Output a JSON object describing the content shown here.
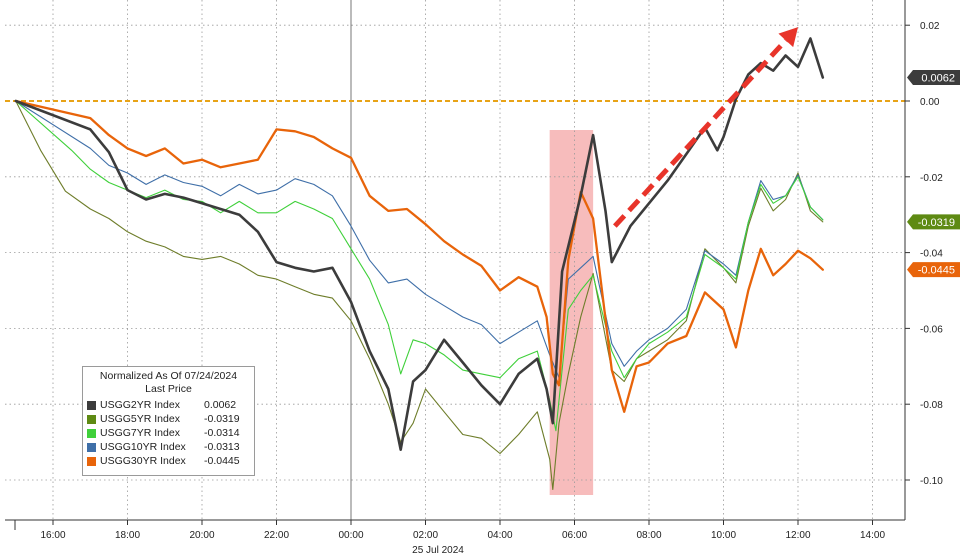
{
  "chart_data": {
    "type": "line",
    "x_ticks": [
      "16:00",
      "18:00",
      "20:00",
      "22:00",
      "00:00",
      "02:00",
      "04:00",
      "06:00",
      "08:00",
      "10:00",
      "12:00",
      "14:00"
    ],
    "x_sublabel": "25 Jul 2024",
    "y_ticks": [
      "0.02",
      "0.00",
      "-0.02",
      "-0.04",
      "-0.06",
      "-0.08",
      "-0.10"
    ],
    "ylim": [
      -0.11,
      0.021
    ],
    "xlim": [
      "15:00",
      "15:00 (+1d)"
    ],
    "zero_line_color": "#e8a317",
    "highlight_region": {
      "from": "05:20",
      "to": "06:30",
      "color": "#f4a6a6"
    },
    "trend_arrow": {
      "color": "#e8342a",
      "from": [
        "07:05",
        -0.033
      ],
      "to": [
        "12:00",
        0.0195
      ]
    },
    "legend": {
      "title": "Normalized As Of 07/24/2024",
      "subtitle": "Last Price",
      "items": [
        {
          "name": "USGG2YR Index",
          "value": "0.0062",
          "color": "#3c3c3c"
        },
        {
          "name": "USGG5YR Index",
          "value": "-0.0319",
          "color": "#5e8a13"
        },
        {
          "name": "USGG7YR Index",
          "value": "-0.0314",
          "color": "#3fd03a"
        },
        {
          "name": "USGG10YR Index",
          "value": "-0.0313",
          "color": "#3f6fa8"
        },
        {
          "name": "USGG30YR Index",
          "value": "-0.0445",
          "color": "#e8640a"
        }
      ]
    },
    "value_flags": [
      {
        "label": "0.0062",
        "value": 0.0062,
        "color": "#3c3c3c"
      },
      {
        "label": "-0.0319",
        "value": -0.0319,
        "color": "#5e8a13"
      },
      {
        "label": "-0.0445",
        "value": -0.0445,
        "color": "#e8640a"
      }
    ],
    "series": [
      {
        "color": "#6e7d2a",
        "width": 1.1,
        "points": [
          [
            "15:00",
            0
          ],
          [
            "15:40",
            -0.013
          ],
          [
            "16:20",
            -0.0238
          ],
          [
            "17:00",
            -0.0285
          ],
          [
            "17:30",
            -0.031
          ],
          [
            "18:00",
            -0.0345
          ],
          [
            "18:30",
            -0.037
          ],
          [
            "19:00",
            -0.0385
          ],
          [
            "19:30",
            -0.041
          ],
          [
            "20:00",
            -0.0418
          ],
          [
            "20:30",
            -0.041
          ],
          [
            "21:00",
            -0.043
          ],
          [
            "21:30",
            -0.046
          ],
          [
            "22:00",
            -0.047
          ],
          [
            "22:30",
            -0.049
          ],
          [
            "23:00",
            -0.051
          ],
          [
            "23:30",
            -0.052
          ],
          [
            "00:00",
            -0.058
          ],
          [
            "00:30",
            -0.068
          ],
          [
            "01:00",
            -0.08
          ],
          [
            "01:20",
            -0.09
          ],
          [
            "01:40",
            -0.085
          ],
          [
            "02:00",
            -0.076
          ],
          [
            "02:30",
            -0.082
          ],
          [
            "03:00",
            -0.088
          ],
          [
            "03:30",
            -0.089
          ],
          [
            "04:00",
            -0.093
          ],
          [
            "04:30",
            -0.088
          ],
          [
            "05:00",
            -0.082
          ],
          [
            "05:20",
            -0.0945
          ],
          [
            "05:25",
            -0.1025
          ],
          [
            "05:35",
            -0.085
          ],
          [
            "05:50",
            -0.072
          ],
          [
            "06:10",
            -0.057
          ],
          [
            "06:30",
            -0.0455
          ],
          [
            "07:00",
            -0.071
          ],
          [
            "07:20",
            -0.074
          ],
          [
            "07:40",
            -0.068
          ],
          [
            "08:00",
            -0.066
          ],
          [
            "08:30",
            -0.063
          ],
          [
            "09:00",
            -0.058
          ],
          [
            "09:30",
            -0.039
          ],
          [
            "10:00",
            -0.044
          ],
          [
            "10:20",
            -0.048
          ],
          [
            "10:40",
            -0.033
          ],
          [
            "11:00",
            -0.023
          ],
          [
            "11:20",
            -0.029
          ],
          [
            "11:40",
            -0.026
          ],
          [
            "12:00",
            -0.019
          ],
          [
            "12:20",
            -0.029
          ],
          [
            "12:40",
            -0.0319
          ]
        ]
      },
      {
        "color": "#3f6fa8",
        "width": 1.1,
        "points": [
          [
            "15:00",
            0
          ],
          [
            "17:00",
            -0.0125
          ],
          [
            "17:30",
            -0.017
          ],
          [
            "18:00",
            -0.019
          ],
          [
            "18:30",
            -0.022
          ],
          [
            "19:00",
            -0.0195
          ],
          [
            "19:30",
            -0.0215
          ],
          [
            "20:00",
            -0.0225
          ],
          [
            "20:30",
            -0.025
          ],
          [
            "21:00",
            -0.022
          ],
          [
            "21:30",
            -0.0245
          ],
          [
            "22:00",
            -0.0235
          ],
          [
            "22:30",
            -0.0205
          ],
          [
            "23:00",
            -0.022
          ],
          [
            "23:30",
            -0.025
          ],
          [
            "00:00",
            -0.033
          ],
          [
            "00:30",
            -0.042
          ],
          [
            "01:00",
            -0.048
          ],
          [
            "01:30",
            -0.047
          ],
          [
            "02:00",
            -0.051
          ],
          [
            "02:30",
            -0.054
          ],
          [
            "03:00",
            -0.057
          ],
          [
            "03:30",
            -0.059
          ],
          [
            "04:00",
            -0.064
          ],
          [
            "04:30",
            -0.061
          ],
          [
            "05:00",
            -0.058
          ],
          [
            "05:20",
            -0.067
          ],
          [
            "05:35",
            -0.073
          ],
          [
            "05:50",
            -0.047
          ],
          [
            "06:10",
            -0.044
          ],
          [
            "06:30",
            -0.041
          ],
          [
            "07:00",
            -0.064
          ],
          [
            "07:20",
            -0.07
          ],
          [
            "07:40",
            -0.066
          ],
          [
            "08:00",
            -0.063
          ],
          [
            "08:30",
            -0.06
          ],
          [
            "09:00",
            -0.055
          ],
          [
            "09:30",
            -0.0395
          ],
          [
            "10:00",
            -0.043
          ],
          [
            "10:20",
            -0.046
          ],
          [
            "10:40",
            -0.032
          ],
          [
            "11:00",
            -0.021
          ],
          [
            "11:20",
            -0.026
          ],
          [
            "11:40",
            -0.025
          ],
          [
            "12:00",
            -0.0195
          ],
          [
            "12:20",
            -0.028
          ],
          [
            "12:40",
            -0.0313
          ]
        ]
      },
      {
        "color": "#3fd03a",
        "width": 1.1,
        "points": [
          [
            "15:00",
            0
          ],
          [
            "16:30",
            -0.013
          ],
          [
            "17:00",
            -0.018
          ],
          [
            "17:30",
            -0.0215
          ],
          [
            "18:00",
            -0.0235
          ],
          [
            "18:30",
            -0.0255
          ],
          [
            "19:00",
            -0.0235
          ],
          [
            "19:30",
            -0.026
          ],
          [
            "20:00",
            -0.0265
          ],
          [
            "20:30",
            -0.0295
          ],
          [
            "21:00",
            -0.0265
          ],
          [
            "21:30",
            -0.0295
          ],
          [
            "22:00",
            -0.0295
          ],
          [
            "22:30",
            -0.0265
          ],
          [
            "23:00",
            -0.0285
          ],
          [
            "23:30",
            -0.031
          ],
          [
            "00:00",
            -0.039
          ],
          [
            "00:30",
            -0.047
          ],
          [
            "01:00",
            -0.059
          ],
          [
            "01:20",
            -0.072
          ],
          [
            "01:40",
            -0.063
          ],
          [
            "02:00",
            -0.064
          ],
          [
            "02:30",
            -0.067
          ],
          [
            "03:00",
            -0.071
          ],
          [
            "03:30",
            -0.072
          ],
          [
            "04:00",
            -0.073
          ],
          [
            "04:30",
            -0.068
          ],
          [
            "05:00",
            -0.066
          ],
          [
            "05:20",
            -0.079
          ],
          [
            "05:30",
            -0.087
          ],
          [
            "05:50",
            -0.055
          ],
          [
            "06:10",
            -0.05
          ],
          [
            "06:30",
            -0.046
          ],
          [
            "07:00",
            -0.066
          ],
          [
            "07:20",
            -0.073
          ],
          [
            "07:40",
            -0.068
          ],
          [
            "08:00",
            -0.064
          ],
          [
            "08:30",
            -0.061
          ],
          [
            "09:00",
            -0.057
          ],
          [
            "09:30",
            -0.0405
          ],
          [
            "10:00",
            -0.044
          ],
          [
            "10:20",
            -0.047
          ],
          [
            "10:40",
            -0.032
          ],
          [
            "11:00",
            -0.022
          ],
          [
            "11:20",
            -0.027
          ],
          [
            "11:40",
            -0.025
          ],
          [
            "12:00",
            -0.02
          ],
          [
            "12:20",
            -0.028
          ],
          [
            "12:40",
            -0.0314
          ]
        ]
      },
      {
        "color": "#e8640a",
        "width": 2.3,
        "points": [
          [
            "15:00",
            0
          ],
          [
            "17:00",
            -0.0045
          ],
          [
            "17:30",
            -0.009
          ],
          [
            "18:00",
            -0.0125
          ],
          [
            "18:30",
            -0.0145
          ],
          [
            "19:00",
            -0.0125
          ],
          [
            "19:30",
            -0.0165
          ],
          [
            "20:00",
            -0.0155
          ],
          [
            "20:30",
            -0.0175
          ],
          [
            "21:00",
            -0.0165
          ],
          [
            "21:30",
            -0.0155
          ],
          [
            "22:00",
            -0.0075
          ],
          [
            "22:30",
            -0.008
          ],
          [
            "23:00",
            -0.0095
          ],
          [
            "23:30",
            -0.0125
          ],
          [
            "00:00",
            -0.015
          ],
          [
            "00:30",
            -0.025
          ],
          [
            "01:00",
            -0.029
          ],
          [
            "01:30",
            -0.0285
          ],
          [
            "02:00",
            -0.0325
          ],
          [
            "02:30",
            -0.037
          ],
          [
            "03:00",
            -0.0405
          ],
          [
            "03:30",
            -0.0435
          ],
          [
            "04:00",
            -0.05
          ],
          [
            "04:30",
            -0.0465
          ],
          [
            "05:00",
            -0.049
          ],
          [
            "05:15",
            -0.057
          ],
          [
            "05:25",
            -0.072
          ],
          [
            "05:35",
            -0.075
          ],
          [
            "05:50",
            -0.042
          ],
          [
            "06:10",
            -0.024
          ],
          [
            "06:30",
            -0.031
          ],
          [
            "07:00",
            -0.071
          ],
          [
            "07:20",
            -0.082
          ],
          [
            "07:40",
            -0.07
          ],
          [
            "08:00",
            -0.069
          ],
          [
            "08:30",
            -0.064
          ],
          [
            "09:00",
            -0.062
          ],
          [
            "09:30",
            -0.0505
          ],
          [
            "10:00",
            -0.055
          ],
          [
            "10:20",
            -0.065
          ],
          [
            "10:40",
            -0.05
          ],
          [
            "11:00",
            -0.039
          ],
          [
            "11:20",
            -0.046
          ],
          [
            "11:40",
            -0.043
          ],
          [
            "12:00",
            -0.0395
          ],
          [
            "12:20",
            -0.0415
          ],
          [
            "12:40",
            -0.0445
          ]
        ]
      },
      {
        "color": "#3c3c3c",
        "width": 2.6,
        "points": [
          [
            "15:00",
            0
          ],
          [
            "17:00",
            -0.0075
          ],
          [
            "17:30",
            -0.0135
          ],
          [
            "18:00",
            -0.0235
          ],
          [
            "18:30",
            -0.026
          ],
          [
            "19:00",
            -0.0245
          ],
          [
            "19:30",
            -0.0255
          ],
          [
            "20:00",
            -0.027
          ],
          [
            "20:30",
            -0.0285
          ],
          [
            "21:00",
            -0.03
          ],
          [
            "21:30",
            -0.0345
          ],
          [
            "22:00",
            -0.0425
          ],
          [
            "22:30",
            -0.044
          ],
          [
            "23:00",
            -0.045
          ],
          [
            "23:30",
            -0.044
          ],
          [
            "00:00",
            -0.053
          ],
          [
            "00:30",
            -0.066
          ],
          [
            "01:00",
            -0.076
          ],
          [
            "01:20",
            -0.092
          ],
          [
            "01:40",
            -0.074
          ],
          [
            "02:00",
            -0.071
          ],
          [
            "02:30",
            -0.063
          ],
          [
            "03:00",
            -0.069
          ],
          [
            "03:30",
            -0.075
          ],
          [
            "04:00",
            -0.08
          ],
          [
            "04:30",
            -0.072
          ],
          [
            "05:00",
            -0.068
          ],
          [
            "05:15",
            -0.076
          ],
          [
            "05:25",
            -0.085
          ],
          [
            "05:40",
            -0.045
          ],
          [
            "05:55",
            -0.035
          ],
          [
            "06:10",
            -0.025
          ],
          [
            "06:30",
            -0.009
          ],
          [
            "06:50",
            -0.029
          ],
          [
            "07:00",
            -0.0425
          ],
          [
            "07:30",
            -0.033
          ],
          [
            "08:00",
            -0.027
          ],
          [
            "08:30",
            -0.021
          ],
          [
            "09:00",
            -0.014
          ],
          [
            "09:30",
            -0.007
          ],
          [
            "09:50",
            -0.013
          ],
          [
            "10:00",
            -0.0095
          ],
          [
            "10:20",
            0.0005
          ],
          [
            "10:40",
            0.007
          ],
          [
            "11:00",
            0.01
          ],
          [
            "11:20",
            0.008
          ],
          [
            "11:40",
            0.012
          ],
          [
            "12:00",
            0.009
          ],
          [
            "12:20",
            0.0165
          ],
          [
            "12:40",
            0.0062
          ]
        ]
      }
    ]
  }
}
